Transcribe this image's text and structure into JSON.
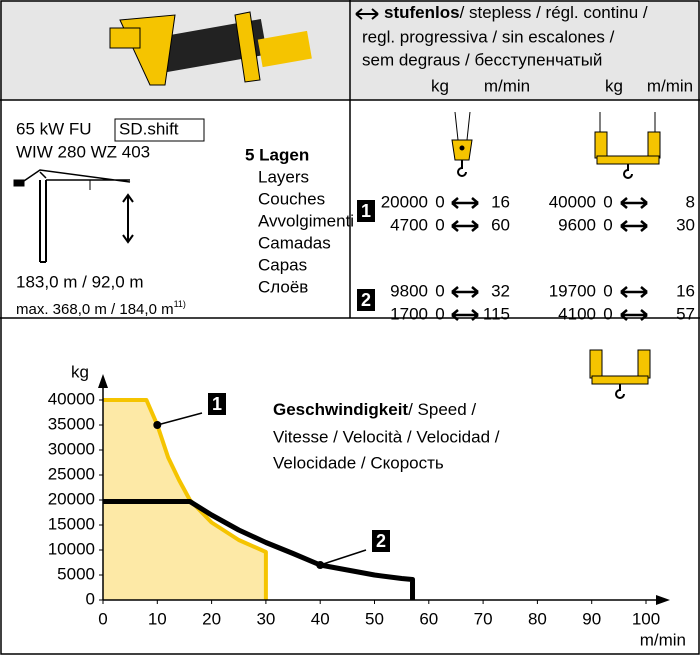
{
  "header": {
    "bold": "stufenlos",
    "lines": [
      "/ stepless / régl. continu /",
      "regl. progressiva / sin escalones /",
      "sem degraus / бесступенчатый"
    ],
    "units": [
      "kg",
      "m/min",
      "kg",
      "m/min"
    ]
  },
  "winch": {
    "model": "65 kW FU",
    "badge": "SD.shift",
    "code": "WIW 280 WZ 403",
    "heights": "183,0 m / 92,0 m",
    "max": "max. 368,0 m / 184,0 m",
    "footnote": "11)"
  },
  "layers": {
    "title": "5 Lagen",
    "items": [
      "Layers",
      "Couches",
      "Avvolgimenti",
      "Camadas",
      "Capas",
      "Слоёв"
    ]
  },
  "gears": [
    {
      "label": "1",
      "rows": [
        [
          20000,
          0,
          16,
          40000,
          0,
          8
        ],
        [
          4700,
          0,
          60,
          9600,
          0,
          30
        ]
      ]
    },
    {
      "label": "2",
      "rows": [
        [
          9800,
          0,
          32,
          19700,
          0,
          16
        ],
        [
          1700,
          0,
          115,
          4100,
          0,
          57
        ]
      ]
    }
  ],
  "chart_data": {
    "type": "line",
    "ylabel": "kg",
    "xlabel": "m/min",
    "annotation": {
      "bold": "Geschwindigkeit",
      "lines": [
        "/ Speed /",
        "Vitesse / Velocità / Velocidad /",
        "Velocidade / Скорость"
      ]
    },
    "xlim": [
      0,
      100
    ],
    "xticks": [
      0,
      10,
      20,
      30,
      40,
      50,
      60,
      70,
      80,
      90,
      100
    ],
    "ylim": [
      0,
      40000
    ],
    "yticks": [
      0,
      5000,
      10000,
      15000,
      20000,
      25000,
      30000,
      35000,
      40000
    ],
    "series": [
      {
        "name": "1",
        "color": "#f5c400",
        "x": [
          0,
          8,
          10,
          12,
          14,
          16,
          20,
          25,
          30,
          30
        ],
        "values": [
          40000,
          40000,
          35000,
          28500,
          24000,
          20000,
          15500,
          12000,
          9600,
          0
        ]
      },
      {
        "name": "2",
        "color": "#000000",
        "x": [
          0,
          16,
          20,
          25,
          30,
          35,
          40,
          45,
          50,
          55,
          57,
          57
        ],
        "values": [
          19700,
          19700,
          17000,
          14000,
          11500,
          9300,
          7000,
          6000,
          5000,
          4300,
          4100,
          0
        ]
      }
    ],
    "markers": [
      {
        "x": 10,
        "y": 35000
      },
      {
        "x": 40,
        "y": 7000
      }
    ]
  }
}
